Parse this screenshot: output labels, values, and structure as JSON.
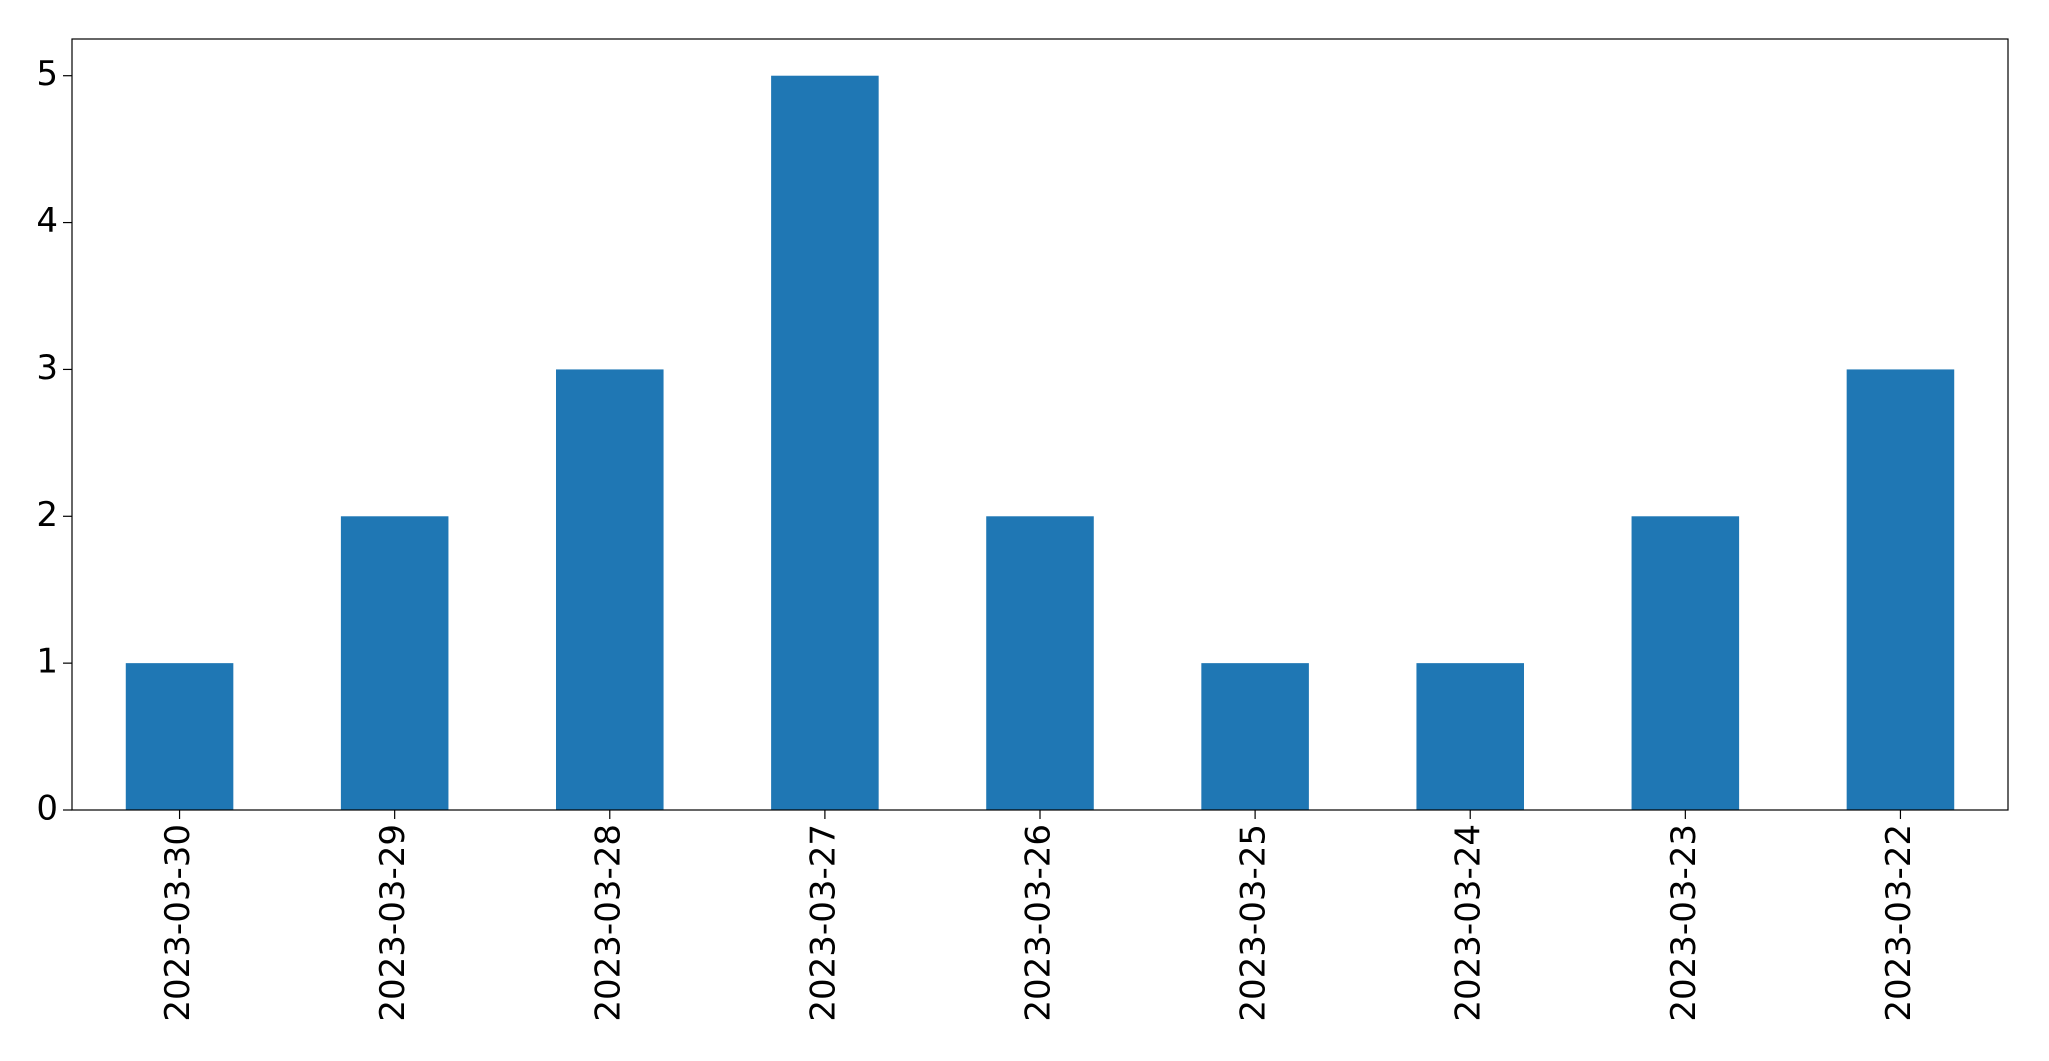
{
  "chart_data": {
    "type": "bar",
    "categories": [
      "2023-03-30",
      "2023-03-29",
      "2023-03-28",
      "2023-03-27",
      "2023-03-26",
      "2023-03-25",
      "2023-03-24",
      "2023-03-23",
      "2023-03-22"
    ],
    "values": [
      1,
      2,
      3,
      5,
      2,
      1,
      1,
      2,
      3
    ],
    "color": "#1f77b4",
    "ylim": [
      0,
      5.25
    ],
    "yticks": [
      0,
      1,
      2,
      3,
      4,
      5
    ],
    "grid": false
  }
}
